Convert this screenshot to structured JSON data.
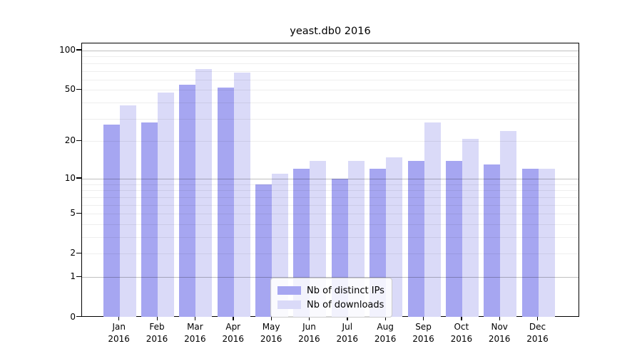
{
  "window": {
    "title": "yeast.db0 2016"
  },
  "chart_data": {
    "type": "bar",
    "title": "yeast.db0 2016",
    "categories": [
      "Jan",
      "Feb",
      "Mar",
      "Apr",
      "May",
      "Jun",
      "Jul",
      "Aug",
      "Sep",
      "Oct",
      "Nov",
      "Dec"
    ],
    "category_year": "2016",
    "series": [
      {
        "name": "Nb of distinct IPs",
        "color": "#a6a6f1",
        "values": [
          27,
          28,
          55,
          52,
          9,
          12,
          10,
          12,
          14,
          14,
          13,
          12
        ]
      },
      {
        "name": "Nb of downloads",
        "color": "#dadaf8",
        "values": [
          38,
          48,
          72,
          68,
          11,
          14,
          14,
          15,
          28,
          21,
          24,
          12
        ]
      }
    ],
    "xlabel": "",
    "ylabel": "",
    "yscale": "log1p",
    "ylim": [
      0,
      100
    ],
    "yticks": [
      0,
      1,
      2,
      5,
      10,
      20,
      50,
      100
    ],
    "ytick_labels": [
      "0",
      "1",
      "2",
      "5",
      "10",
      "20",
      "50",
      "100"
    ],
    "minor_gridlines": [
      2,
      3,
      4,
      5,
      6,
      7,
      8,
      9,
      20,
      30,
      40,
      50,
      60,
      70,
      80,
      90
    ],
    "major_gridlines": [
      1,
      10,
      100
    ],
    "grid": true,
    "legend_position": "lower-center-inside",
    "colors": {
      "axis": "#000000",
      "grid_minor": "rgba(0,0,0,0.065)",
      "grid_major": "rgba(0,0,0,0.25)",
      "background": "#ffffff"
    }
  }
}
